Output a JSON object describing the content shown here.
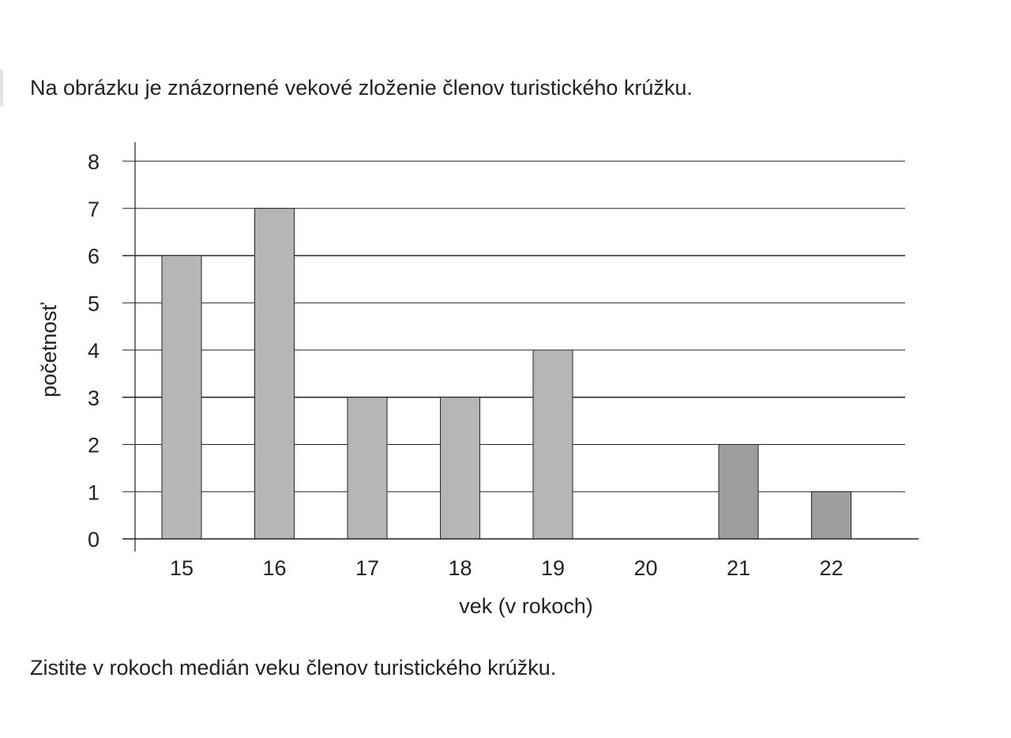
{
  "intro_text": "Na obrázku je znázornené vekové zloženie členov turistického krúžku.",
  "question_text": "Zistite v rokoch medián veku členov turistického krúžku.",
  "colors": {
    "bar": "#b6b6b6",
    "bar_alt": "#9d9d9d",
    "grid": "#222222",
    "text": "#222222"
  },
  "chart_data": {
    "type": "bar",
    "categories": [
      "15",
      "16",
      "17",
      "18",
      "19",
      "20",
      "21",
      "22"
    ],
    "values": [
      6,
      7,
      3,
      3,
      4,
      0,
      2,
      1
    ],
    "xlabel": "vek (v rokoch)",
    "ylabel": "početnosť",
    "ylim": [
      0,
      8
    ],
    "yticks": [
      "0",
      "1",
      "2",
      "3",
      "4",
      "5",
      "6",
      "7",
      "8"
    ],
    "grid": true
  }
}
